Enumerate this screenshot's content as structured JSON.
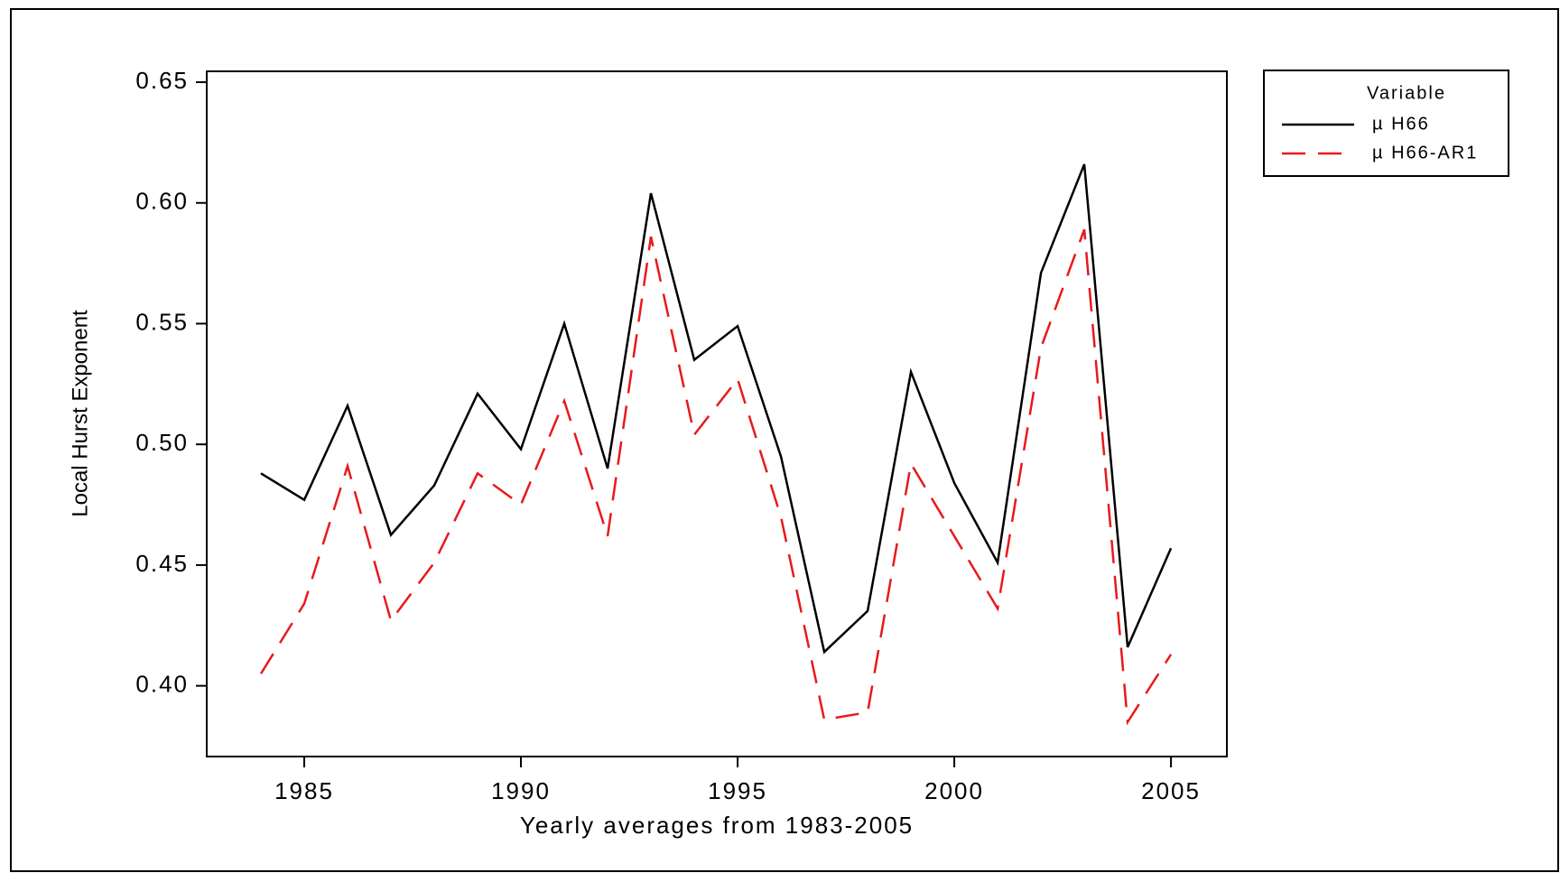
{
  "chart_data": {
    "type": "line",
    "x_label": "Yearly averages from 1983-2005",
    "y_label": "Local Hurst Exponent",
    "legend_title": "Variable",
    "legend": "right",
    "x": [
      1984,
      1985,
      1986,
      1987,
      1988,
      1989,
      1990,
      1991,
      1992,
      1993,
      1994,
      1995,
      1996,
      1997,
      1998,
      1999,
      2000,
      2001,
      2002,
      2003,
      2004,
      2005
    ],
    "series": [
      {
        "name": "µ H66",
        "color": "#000000",
        "dash": false,
        "values": [
          0.488,
          0.477,
          0.516,
          0.4625,
          0.483,
          0.521,
          0.498,
          0.55,
          0.49,
          0.604,
          0.535,
          0.549,
          0.495,
          0.414,
          0.431,
          0.53,
          0.484,
          0.451,
          0.571,
          0.616,
          0.416,
          0.457
        ]
      },
      {
        "name": "µ H66-AR1",
        "color": "#e8191c",
        "dash": true,
        "values": [
          0.405,
          0.434,
          0.491,
          0.427,
          0.451,
          0.488,
          0.475,
          0.518,
          0.462,
          0.586,
          0.504,
          0.527,
          0.47,
          0.386,
          0.389,
          0.492,
          0.462,
          0.432,
          0.54,
          0.589,
          0.385,
          0.413
        ]
      }
    ],
    "xlim": [
      1982.75,
      2006.29
    ],
    "xticks": [
      1985,
      1990,
      1995,
      2000,
      2005
    ],
    "ylim": [
      0.3707,
      0.6545
    ],
    "yticks": [
      0.65,
      {
        "value": 0.6,
        "label": "0.60"
      },
      0.55,
      {
        "value": 0.5,
        "label": "0.50"
      },
      0.45,
      {
        "value": 0.4,
        "label": "0.40"
      }
    ]
  }
}
